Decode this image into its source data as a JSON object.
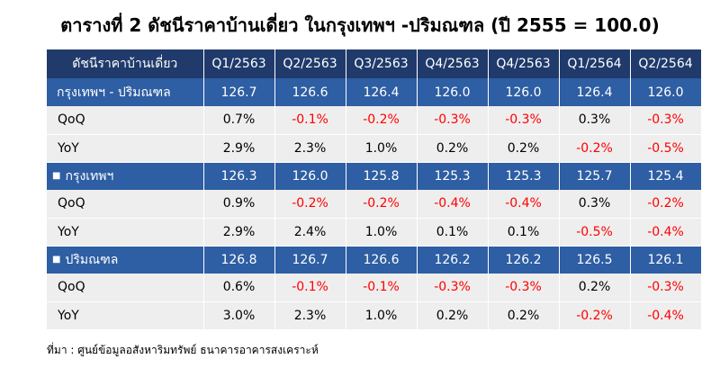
{
  "title": "ตารางที่ 2 ดัชนีราคาบ้านเดี่ยว ในกรุงเทพฯ -ปริมณฑล (ปี 2555 = 100.0)",
  "table": {
    "header": [
      "ดัชนีราคาบ้านเดี่ยว",
      "Q1/2563",
      "Q2/2563",
      "Q3/2563",
      "Q4/2563",
      "Q4/2563",
      "Q1/2564",
      "Q2/2564"
    ],
    "groups": [
      {
        "label": "กรุงเทพฯ - ปริมณฑล",
        "bullet": "",
        "values": [
          "126.7",
          "126.6",
          "126.4",
          "126.0",
          "126.0",
          "126.4",
          "126.0"
        ],
        "rows": [
          {
            "label": "QoQ",
            "values": [
              "0.7%",
              "-0.1%",
              "-0.2%",
              "-0.3%",
              "-0.3%",
              "0.3%",
              "-0.3%"
            ]
          },
          {
            "label": "YoY",
            "values": [
              "2.9%",
              "2.3%",
              "1.0%",
              "0.2%",
              "0.2%",
              "-0.2%",
              "-0.5%"
            ]
          }
        ]
      },
      {
        "label": "กรุงเทพฯ",
        "bullet": "■",
        "values": [
          "126.3",
          "126.0",
          "125.8",
          "125.3",
          "125.3",
          "125.7",
          "125.4"
        ],
        "rows": [
          {
            "label": "QoQ",
            "values": [
              "0.9%",
              "-0.2%",
              "-0.2%",
              "-0.4%",
              "-0.4%",
              "0.3%",
              "-0.2%"
            ]
          },
          {
            "label": "YoY",
            "values": [
              "2.9%",
              "2.4%",
              "1.0%",
              "0.1%",
              "0.1%",
              "-0.5%",
              "-0.4%"
            ]
          }
        ]
      },
      {
        "label": "ปริมณฑล",
        "bullet": "■",
        "values": [
          "126.8",
          "126.7",
          "126.6",
          "126.2",
          "126.2",
          "126.5",
          "126.1"
        ],
        "rows": [
          {
            "label": "QoQ",
            "values": [
              "0.6%",
              "-0.1%",
              "-0.1%",
              "-0.3%",
              "-0.3%",
              "0.2%",
              "-0.3%"
            ]
          },
          {
            "label": "YoY",
            "values": [
              "3.0%",
              "2.3%",
              "1.0%",
              "0.2%",
              "0.2%",
              "-0.2%",
              "-0.4%"
            ]
          }
        ]
      }
    ]
  },
  "source": "ที่มา : ศูนย์ข้อมูลอสังหาริมทรัพย์ ธนาคารอาคารสงเคราะห์",
  "colors": {
    "header_bg": "#1f3a6b",
    "group_bg": "#2e5ea3",
    "sub_bg": "#eeeeee",
    "negative": "#ff0000"
  }
}
